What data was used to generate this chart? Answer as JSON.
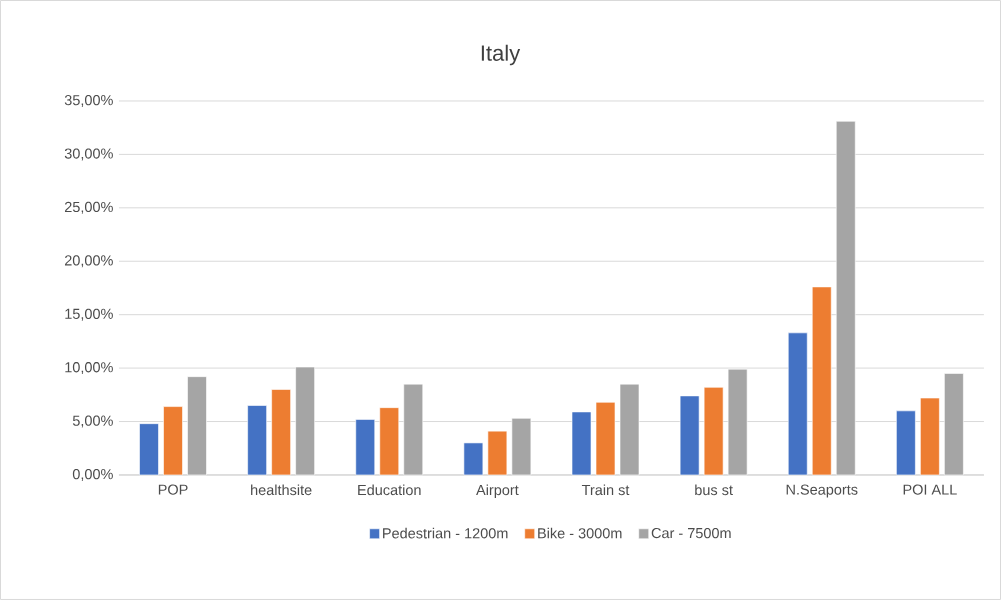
{
  "chart_data": {
    "type": "bar",
    "title": "Italy",
    "categories": [
      "POP",
      "healthsite",
      "Education",
      "Airport",
      "Train st",
      "bus st",
      "N.Seaports",
      "POI ALL"
    ],
    "series": [
      {
        "name": "Pedestrian - 1200m",
        "color": "#4472c4",
        "values": [
          4.8,
          6.5,
          5.2,
          3.0,
          5.9,
          7.4,
          13.3,
          6.0
        ]
      },
      {
        "name": "Bike - 3000m",
        "color": "#ed7d31",
        "values": [
          6.4,
          8.0,
          6.3,
          4.1,
          6.8,
          8.2,
          17.6,
          7.2
        ]
      },
      {
        "name": "Car - 7500m",
        "color": "#a5a5a5",
        "values": [
          9.2,
          10.1,
          8.5,
          5.3,
          8.5,
          9.9,
          33.1,
          9.5
        ]
      }
    ],
    "ylim": [
      0,
      35
    ],
    "yticks": [
      {
        "value": 0,
        "label": "0,00%"
      },
      {
        "value": 5,
        "label": "5,00%"
      },
      {
        "value": 10,
        "label": "10,00%"
      },
      {
        "value": 15,
        "label": "15,00%"
      },
      {
        "value": 20,
        "label": "20,00%"
      },
      {
        "value": 25,
        "label": "25,00%"
      },
      {
        "value": 30,
        "label": "30,00%"
      },
      {
        "value": 35,
        "label": "35,00%"
      }
    ],
    "grid": "y",
    "legend": "bottom"
  }
}
